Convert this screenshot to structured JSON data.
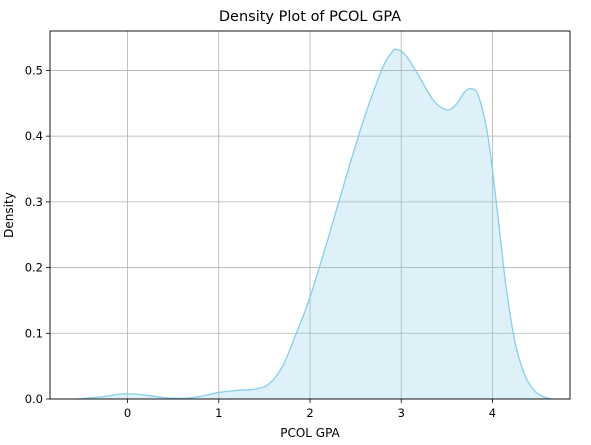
{
  "chart_data": {
    "type": "area",
    "title": "Density Plot of PCOL GPA",
    "xlabel": "PCOL GPA",
    "ylabel": "Density",
    "xlim": [
      -0.85,
      4.85
    ],
    "ylim": [
      0,
      0.56
    ],
    "xticks": [
      0,
      1,
      2,
      3,
      4
    ],
    "yticks": [
      0.0,
      0.1,
      0.2,
      0.3,
      0.4,
      0.5
    ],
    "ytick_labels": [
      "0.0",
      "0.1",
      "0.2",
      "0.3",
      "0.4",
      "0.5"
    ],
    "grid": true,
    "colors": {
      "line": "#87ceeb",
      "fill": "#87ceeb",
      "fill_opacity": 0.28,
      "grid": "#b0b0b0"
    },
    "series": [
      {
        "x": [
          -0.55,
          -0.3,
          -0.1,
          0.0,
          0.2,
          0.4,
          0.6,
          0.8,
          1.0,
          1.2,
          1.4,
          1.55,
          1.7,
          1.85,
          2.0,
          2.2,
          2.4,
          2.6,
          2.8,
          2.9,
          2.95,
          3.05,
          3.2,
          3.35,
          3.5,
          3.6,
          3.7,
          3.78,
          3.85,
          3.95,
          4.05,
          4.15,
          4.25,
          4.35,
          4.45,
          4.55,
          4.65
        ],
        "y": [
          0.0,
          0.003,
          0.007,
          0.008,
          0.006,
          0.002,
          0.001,
          0.004,
          0.01,
          0.013,
          0.015,
          0.023,
          0.05,
          0.1,
          0.155,
          0.245,
          0.34,
          0.43,
          0.505,
          0.528,
          0.532,
          0.523,
          0.49,
          0.455,
          0.44,
          0.448,
          0.468,
          0.472,
          0.46,
          0.4,
          0.29,
          0.17,
          0.085,
          0.038,
          0.014,
          0.004,
          0.0
        ]
      }
    ]
  }
}
